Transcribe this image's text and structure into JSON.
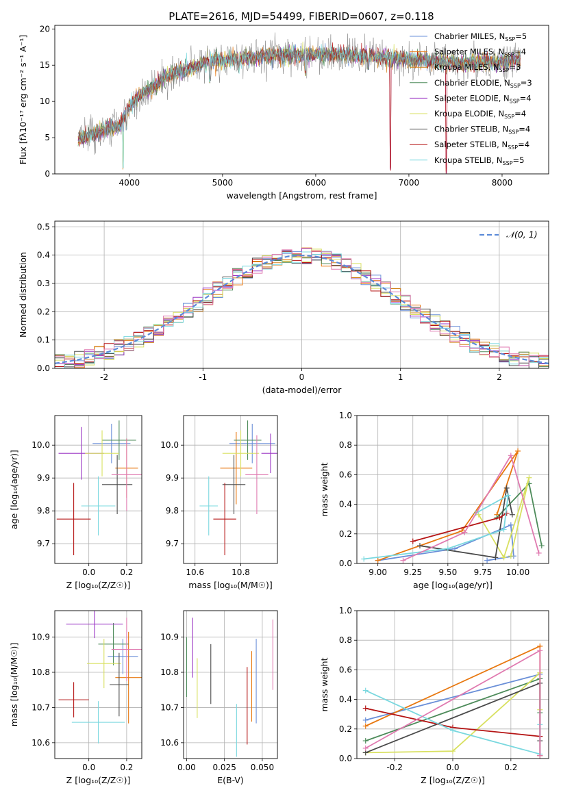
{
  "figure": {
    "title": "PLATE=2616, MJD=54499, FIBERID=0607, z=0.118"
  },
  "colors": {
    "chabrier_miles": "#6a8fd8",
    "salpeter_miles": "#ff8c00",
    "kroupa_miles": "#d2841a",
    "chabrier_elodie": "#4d8b5a",
    "salpeter_elodie": "#9b36c4",
    "kroupa_elodie": "#d8e060",
    "chabrier_stelib": "#4a4a4a",
    "salpeter_stelib": "#b51515",
    "kroupa_stelib": "#7ad8df",
    "pink": "#e07ab0",
    "gaussian": "#5b8ad8"
  },
  "chart_data": [
    {
      "id": "spectrum",
      "type": "line",
      "title": "PLATE=2616, MJD=54499, FIBERID=0607, z=0.118",
      "xlabel": "wavelength [Angstrom, rest frame]",
      "ylabel": "Flux [fλ10⁻¹⁷ erg cm⁻² s⁻¹ A⁻¹]",
      "xlim": [
        3200,
        8500
      ],
      "ylim": [
        0,
        20.5
      ],
      "xticks": [
        4000,
        5000,
        6000,
        7000,
        8000
      ],
      "yticks": [
        0,
        5,
        10,
        15,
        20
      ],
      "grid": false,
      "legend_position": "right",
      "legend": [
        {
          "label": "Chabrier MILES, N",
          "sub": "SSP",
          "suffix": "=5",
          "color": "#6a8fd8"
        },
        {
          "label": "Salpeter MILES, N",
          "sub": "SSP",
          "suffix": "=4",
          "color": "#e87810"
        },
        {
          "label": "Kroupa MILES, N",
          "sub": "SSP",
          "suffix": "=3",
          "color": "#d2841a"
        },
        {
          "label": "Chabrier ELODIE, N",
          "sub": "SSP",
          "suffix": "=3",
          "color": "#4d8b5a"
        },
        {
          "label": "Salpeter ELODIE, N",
          "sub": "SSP",
          "suffix": "=4",
          "color": "#9b36c4"
        },
        {
          "label": "Kroupa ELODIE, N",
          "sub": "SSP",
          "suffix": "=4",
          "color": "#d8e060"
        },
        {
          "label": "Chabrier STELIB, N",
          "sub": "SSP",
          "suffix": "=4",
          "color": "#4a4a4a"
        },
        {
          "label": "Salpeter STELIB, N",
          "sub": "SSP",
          "suffix": "=4",
          "color": "#b51515"
        },
        {
          "label": "Kroupa STELIB, N",
          "sub": "SSP",
          "suffix": "=5",
          "color": "#7ad8df"
        }
      ],
      "continuum": {
        "x": [
          3450,
          3600,
          3750,
          3900,
          4000,
          4100,
          4200,
          4300,
          4400,
          4500,
          4600,
          4700,
          4800,
          4900,
          5000,
          5200,
          5400,
          5600,
          5800,
          6000,
          6200,
          6400,
          6600,
          6800,
          7000,
          7200,
          7400,
          7600,
          7800,
          8000,
          8200
        ],
        "y": [
          4.8,
          5.5,
          6.2,
          6.6,
          9.5,
          10.8,
          11.5,
          12.3,
          13.5,
          14.0,
          14.3,
          14.8,
          15.3,
          15.7,
          15.6,
          16.0,
          16.2,
          16.3,
          16.4,
          16.5,
          16.5,
          16.4,
          16.2,
          16.0,
          15.8,
          15.6,
          15.4,
          15.3,
          15.3,
          15.5,
          15.7
        ]
      },
      "dips": [
        {
          "x": 3934,
          "y": 0.5
        },
        {
          "x": 3969,
          "y": 6.0
        },
        {
          "x": 4861,
          "y": 12.5
        },
        {
          "x": 5175,
          "y": 13.8
        },
        {
          "x": 5890,
          "y": 13.5
        },
        {
          "x": 6563,
          "y": 14.3
        },
        {
          "x": 6800,
          "y": 0.0
        },
        {
          "x": 7400,
          "y": 0.0
        }
      ]
    },
    {
      "id": "residuals",
      "type": "step-histogram",
      "xlabel": "(data-model)/error",
      "ylabel": "Normed distribution",
      "xlim": [
        -2.5,
        2.5
      ],
      "ylim": [
        0,
        0.52
      ],
      "xticks": [
        -2,
        -1,
        0,
        1,
        2
      ],
      "yticks": [
        0.0,
        0.1,
        0.2,
        0.3,
        0.4,
        0.5
      ],
      "grid": true,
      "legend_position": "top-right",
      "legend_label": "𝒩(0, 1)",
      "bin_width": 0.1
    },
    {
      "id": "age_vs_z",
      "type": "errorbar",
      "xlabel": "Z [log₁₀(Z/Z☉)]",
      "ylabel": "age  [log₁₀(age/yr)]",
      "xlim": [
        -0.18,
        0.28
      ],
      "ylim": [
        9.64,
        10.09
      ],
      "xticks": [
        0.0,
        0.2
      ],
      "yticks": [
        9.7,
        9.8,
        9.9,
        10.0
      ],
      "grid": true,
      "points": [
        {
          "x": 0.12,
          "y": 10.005,
          "xerr": 0.1,
          "yerr": 0.06,
          "color": "#6a8fd8"
        },
        {
          "x": 0.2,
          "y": 9.93,
          "xerr": 0.06,
          "yerr": 0.09,
          "color": "#e87810"
        },
        {
          "x": 0.16,
          "y": 10.015,
          "xerr": 0.09,
          "yerr": 0.06,
          "color": "#4d8b5a"
        },
        {
          "x": -0.04,
          "y": 9.975,
          "xerr": 0.12,
          "yerr": 0.08,
          "color": "#9b36c4"
        },
        {
          "x": 0.07,
          "y": 9.975,
          "xerr": 0.09,
          "yerr": 0.07,
          "color": "#d8e060"
        },
        {
          "x": 0.15,
          "y": 9.88,
          "xerr": 0.08,
          "yerr": 0.09,
          "color": "#4a4a4a"
        },
        {
          "x": -0.08,
          "y": 9.775,
          "xerr": 0.09,
          "yerr": 0.11,
          "color": "#b51515"
        },
        {
          "x": 0.05,
          "y": 9.815,
          "xerr": 0.09,
          "yerr": 0.09,
          "color": "#7ad8df"
        },
        {
          "x": 0.2,
          "y": 9.91,
          "xerr": 0.08,
          "yerr": 0.11,
          "color": "#e07ab0"
        }
      ]
    },
    {
      "id": "age_vs_mass",
      "type": "errorbar",
      "xlabel": "mass [log₁₀(M/M☉)]",
      "ylabel": "",
      "xlim": [
        10.55,
        10.96
      ],
      "ylim": [
        9.64,
        10.09
      ],
      "xticks": [
        10.6,
        10.8
      ],
      "yticks": [
        9.7,
        9.8,
        9.9,
        10.0
      ],
      "grid": true,
      "points": [
        {
          "x": 10.85,
          "y": 10.005,
          "xerr": 0.1,
          "yerr": 0.06,
          "color": "#6a8fd8"
        },
        {
          "x": 10.78,
          "y": 9.93,
          "xerr": 0.07,
          "yerr": 0.11,
          "color": "#e87810"
        },
        {
          "x": 10.83,
          "y": 10.015,
          "xerr": 0.06,
          "yerr": 0.06,
          "color": "#4d8b5a"
        },
        {
          "x": 10.93,
          "y": 9.975,
          "xerr": 0.04,
          "yerr": 0.06,
          "color": "#9b36c4"
        },
        {
          "x": 10.8,
          "y": 9.975,
          "xerr": 0.08,
          "yerr": 0.07,
          "color": "#d8e060"
        },
        {
          "x": 10.77,
          "y": 9.88,
          "xerr": 0.05,
          "yerr": 0.09,
          "color": "#4a4a4a"
        },
        {
          "x": 10.73,
          "y": 9.775,
          "xerr": 0.05,
          "yerr": 0.11,
          "color": "#b51515"
        },
        {
          "x": 10.66,
          "y": 9.815,
          "xerr": 0.04,
          "yerr": 0.09,
          "color": "#7ad8df"
        },
        {
          "x": 10.87,
          "y": 9.91,
          "xerr": 0.05,
          "yerr": 0.12,
          "color": "#e07ab0"
        }
      ]
    },
    {
      "id": "weight_vs_age",
      "type": "line",
      "xlabel": "age  [log₁₀(age/yr)]",
      "ylabel": "mass weight",
      "xlim": [
        8.85,
        10.22
      ],
      "ylim": [
        0,
        1.0
      ],
      "xticks": [
        9.0,
        9.25,
        9.5,
        9.75,
        10.0
      ],
      "yticks": [
        0.0,
        0.2,
        0.4,
        0.6,
        0.8,
        1.0
      ],
      "grid": true,
      "series": [
        {
          "color": "#6a8fd8",
          "x": [
            9.0,
            9.55,
            9.95,
            9.97,
            9.78
          ],
          "y": [
            0.02,
            0.1,
            0.26,
            0.05,
            0.02
          ]
        },
        {
          "color": "#e87810",
          "x": [
            9.0,
            9.6,
            10.0,
            9.85
          ],
          "y": [
            0.02,
            0.22,
            0.76,
            0.33
          ]
        },
        {
          "color": "#4d8b5a",
          "x": [
            9.85,
            10.08,
            10.17
          ],
          "y": [
            0.31,
            0.54,
            0.12
          ]
        },
        {
          "color": "#d8e060",
          "x": [
            9.72,
            9.9,
            10.08,
            9.95
          ],
          "y": [
            0.33,
            0.04,
            0.58,
            0.05
          ]
        },
        {
          "color": "#4a4a4a",
          "x": [
            9.3,
            9.84,
            9.92,
            9.96
          ],
          "y": [
            0.12,
            0.04,
            0.51,
            0.33
          ]
        },
        {
          "color": "#b51515",
          "x": [
            9.25,
            9.87,
            9.92
          ],
          "y": [
            0.15,
            0.31,
            0.34
          ]
        },
        {
          "color": "#7ad8df",
          "x": [
            8.9,
            9.5,
            9.9,
            9.93,
            9.7
          ],
          "y": [
            0.03,
            0.1,
            0.23,
            0.46,
            0.34
          ]
        },
        {
          "color": "#e07ab0",
          "x": [
            9.18,
            9.62,
            9.95,
            10.15
          ],
          "y": [
            0.02,
            0.21,
            0.73,
            0.07
          ]
        }
      ]
    },
    {
      "id": "mass_vs_z",
      "type": "errorbar",
      "xlabel": "Z [log₁₀(Z/Z☉)]",
      "ylabel": "mass [log₁₀(M/M☉)]",
      "xlim": [
        -0.18,
        0.28
      ],
      "ylim": [
        10.555,
        10.975
      ],
      "xticks": [
        0.0,
        0.2
      ],
      "yticks": [
        10.6,
        10.7,
        10.8,
        10.9
      ],
      "grid": true,
      "points": [
        {
          "x": 0.18,
          "y": 10.845,
          "xerr": 0.08,
          "yerr": 0.05,
          "color": "#6a8fd8"
        },
        {
          "x": 0.21,
          "y": 10.785,
          "xerr": 0.07,
          "yerr": 0.13,
          "color": "#e87810"
        },
        {
          "x": 0.13,
          "y": 10.88,
          "xerr": 0.08,
          "yerr": 0.06,
          "color": "#4d8b5a"
        },
        {
          "x": 0.03,
          "y": 10.937,
          "xerr": 0.15,
          "yerr": 0.04,
          "color": "#9b36c4"
        },
        {
          "x": 0.08,
          "y": 10.825,
          "xerr": 0.09,
          "yerr": 0.07,
          "color": "#d8e060"
        },
        {
          "x": 0.16,
          "y": 10.765,
          "xerr": 0.05,
          "yerr": 0.09,
          "color": "#4a4a4a"
        },
        {
          "x": -0.08,
          "y": 10.722,
          "xerr": 0.08,
          "yerr": 0.05,
          "color": "#b51515"
        },
        {
          "x": 0.05,
          "y": 10.658,
          "xerr": 0.14,
          "yerr": 0.06,
          "color": "#7ad8df"
        },
        {
          "x": 0.2,
          "y": 10.865,
          "xerr": 0.08,
          "yerr": 0.09,
          "color": "#e07ab0"
        }
      ]
    },
    {
      "id": "mass_vs_ebv",
      "type": "errorbar",
      "xlabel": "E(B-V)",
      "ylabel": "",
      "xlim": [
        -0.002,
        0.06
      ],
      "ylim": [
        10.555,
        10.975
      ],
      "xticks": [
        0.0,
        0.025,
        0.05
      ],
      "xticklabels": [
        "0.00",
        "0.025",
        "0.050"
      ],
      "yticks": [
        10.6,
        10.7,
        10.8,
        10.9
      ],
      "grid": true,
      "points": [
        {
          "x": 0.046,
          "y": 10.775,
          "xerr": 0,
          "yerr": 0.12,
          "color": "#6a8fd8"
        },
        {
          "x": 0.043,
          "y": 10.76,
          "xerr": 0,
          "yerr": 0.1,
          "color": "#e87810"
        },
        {
          "x": 0.0,
          "y": 10.815,
          "xerr": 0,
          "yerr": 0.085,
          "color": "#4d8b5a"
        },
        {
          "x": 0.004,
          "y": 10.87,
          "xerr": 0,
          "yerr": 0.085,
          "color": "#9b36c4"
        },
        {
          "x": 0.007,
          "y": 10.755,
          "xerr": 0,
          "yerr": 0.085,
          "color": "#d8e060"
        },
        {
          "x": 0.016,
          "y": 10.795,
          "xerr": 0,
          "yerr": 0.085,
          "color": "#4a4a4a"
        },
        {
          "x": 0.04,
          "y": 10.705,
          "xerr": 0,
          "yerr": 0.11,
          "color": "#b51515"
        },
        {
          "x": 0.033,
          "y": 10.635,
          "xerr": 0,
          "yerr": 0.075,
          "color": "#7ad8df"
        },
        {
          "x": 0.057,
          "y": 10.85,
          "xerr": 0,
          "yerr": 0.1,
          "color": "#e07ab0"
        }
      ]
    },
    {
      "id": "weight_vs_z",
      "type": "line",
      "xlabel": "Z [log₁₀(Z/Z☉)]",
      "ylabel": "mass weight",
      "xlim": [
        -0.33,
        0.33
      ],
      "ylim": [
        0,
        1.0
      ],
      "xticks": [
        -0.2,
        0.0,
        0.2
      ],
      "yticks": [
        0.0,
        0.2,
        0.4,
        0.6,
        0.8,
        1.0
      ],
      "grid": true,
      "series": [
        {
          "color": "#6a8fd8",
          "x": [
            -0.3,
            0.3,
            0.3
          ],
          "y": [
            0.26,
            0.57,
            0.02
          ]
        },
        {
          "color": "#e87810",
          "x": [
            -0.3,
            0.3,
            0.3
          ],
          "y": [
            0.22,
            0.76,
            0.02
          ]
        },
        {
          "color": "#4d8b5a",
          "x": [
            -0.3,
            0.3,
            0.3
          ],
          "y": [
            0.12,
            0.54,
            0.31
          ]
        },
        {
          "color": "#d8e060",
          "x": [
            -0.3,
            0.0,
            0.3,
            0.3
          ],
          "y": [
            0.04,
            0.05,
            0.58,
            0.33
          ]
        },
        {
          "color": "#4a4a4a",
          "x": [
            -0.3,
            0.3,
            0.3
          ],
          "y": [
            0.04,
            0.51,
            0.12
          ]
        },
        {
          "color": "#b51515",
          "x": [
            -0.3,
            0.0,
            0.3
          ],
          "y": [
            0.34,
            0.21,
            0.15
          ]
        },
        {
          "color": "#7ad8df",
          "x": [
            -0.3,
            0.0,
            0.3,
            0.3
          ],
          "y": [
            0.46,
            0.19,
            0.03,
            0.23
          ]
        },
        {
          "color": "#e07ab0",
          "x": [
            -0.3,
            0.3,
            0.3
          ],
          "y": [
            0.07,
            0.73,
            0.02
          ]
        }
      ]
    }
  ]
}
